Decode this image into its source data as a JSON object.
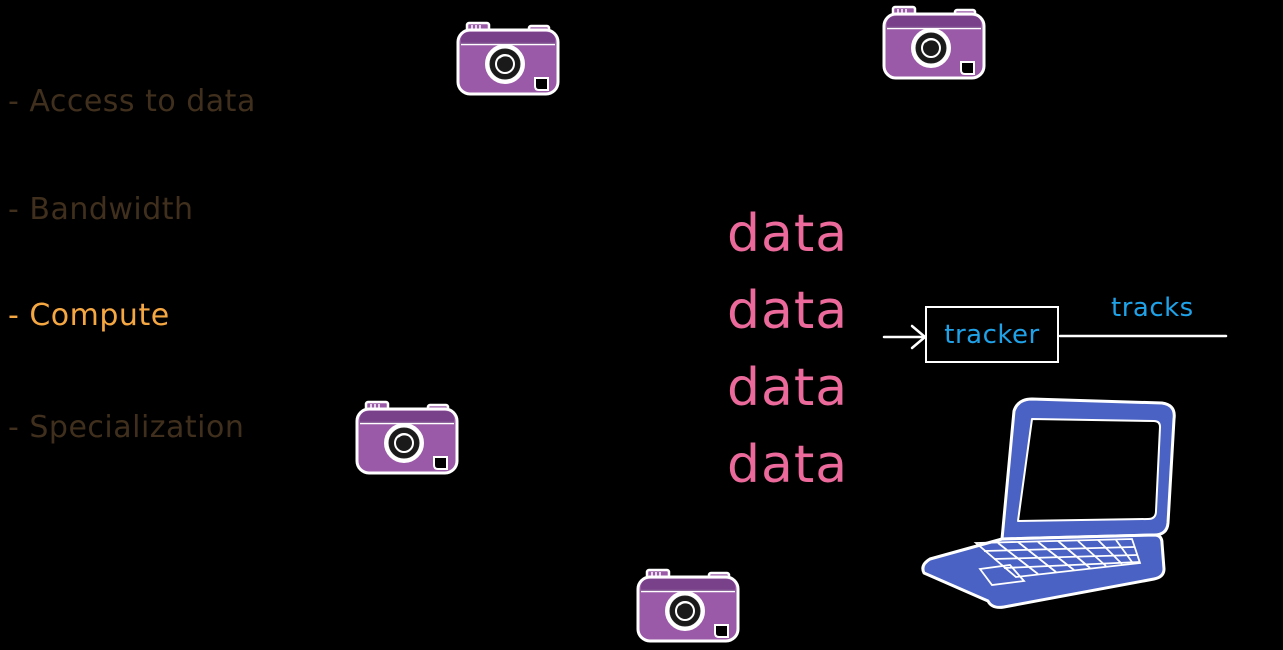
{
  "bullets": [
    {
      "text": "- Access to data",
      "state": "dim"
    },
    {
      "text": "- Bandwidth",
      "state": "dim"
    },
    {
      "text": "- Compute",
      "state": "active"
    },
    {
      "text": "- Specialization",
      "state": "dim"
    }
  ],
  "data_stream": [
    "data",
    "data",
    "data",
    "data"
  ],
  "tracker": {
    "label": "tracker"
  },
  "output": {
    "label": "tracks"
  },
  "icons": {
    "camera": "camera-icon",
    "laptop": "laptop-icon",
    "arrow": "arrow-right-icon"
  },
  "colors": {
    "background": "#000000",
    "bullet_dim": "#3f2f1c",
    "bullet_active": "#f5a742",
    "data_text": "#ec6a9b",
    "tracker_text": "#1fa2e8",
    "camera_body": "#9b5aa8",
    "laptop_body": "#4a62c4"
  }
}
